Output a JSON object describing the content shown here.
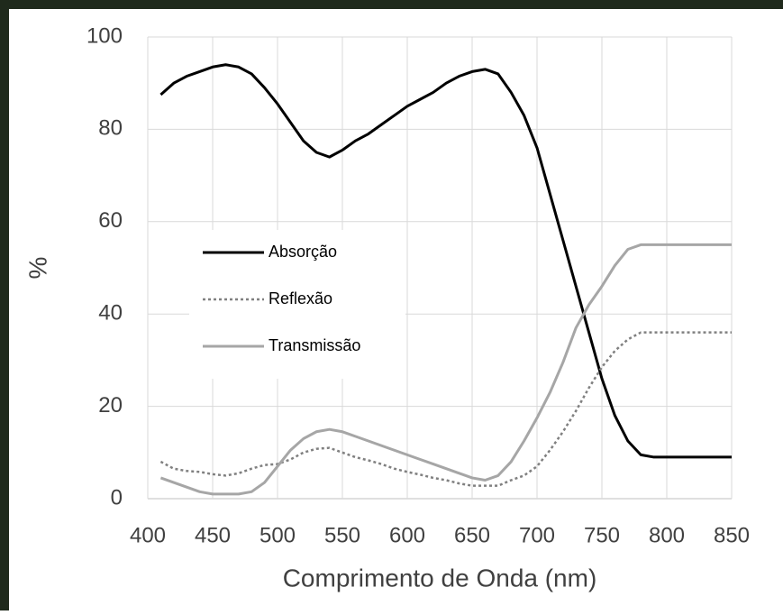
{
  "chart_data": {
    "type": "line",
    "xlabel": "Comprimento de Onda (nm)",
    "ylabel": "%",
    "x": [
      410,
      420,
      430,
      440,
      450,
      460,
      470,
      480,
      490,
      500,
      510,
      520,
      530,
      540,
      550,
      560,
      570,
      580,
      590,
      600,
      610,
      620,
      630,
      640,
      650,
      660,
      670,
      680,
      690,
      700,
      710,
      720,
      730,
      740,
      750,
      760,
      770,
      780,
      790,
      800,
      810,
      820,
      830,
      840,
      850
    ],
    "series": [
      {
        "name": "Absorção",
        "color": "#000000",
        "style": "solid",
        "width": 3,
        "values": [
          87.5,
          90,
          91.5,
          92.5,
          93.5,
          94,
          93.5,
          92,
          89,
          85.5,
          81.5,
          77.5,
          75,
          74,
          75.5,
          77.5,
          79,
          81,
          83,
          85,
          86.5,
          88,
          90,
          91.5,
          92.5,
          93,
          92,
          88,
          83,
          76,
          66,
          56,
          46,
          36,
          26,
          18,
          12.5,
          9.5,
          9,
          9,
          9,
          9,
          9,
          9,
          9
        ]
      },
      {
        "name": "Reflexão",
        "color": "#808080",
        "style": "dotted",
        "width": 2.5,
        "values": [
          8,
          6.5,
          6,
          5.8,
          5.3,
          5,
          5.5,
          6.5,
          7.3,
          7.5,
          8.5,
          10,
          10.8,
          11,
          10,
          9,
          8.3,
          7.5,
          6.5,
          5.8,
          5.2,
          4.5,
          4,
          3.3,
          2.8,
          2.8,
          2.8,
          4,
          5,
          7,
          10.5,
          14.5,
          19,
          24,
          28.5,
          32,
          34.5,
          36,
          36,
          36,
          36,
          36,
          36,
          36,
          36
        ]
      },
      {
        "name": "Transmissão",
        "color": "#a6a6a6",
        "style": "solid",
        "width": 3,
        "values": [
          4.5,
          3.5,
          2.5,
          1.5,
          1,
          1,
          1,
          1.5,
          3.5,
          7,
          10.5,
          13,
          14.5,
          15,
          14.5,
          13.5,
          12.5,
          11.5,
          10.5,
          9.5,
          8.5,
          7.5,
          6.5,
          5.5,
          4.5,
          4,
          5,
          8,
          12.5,
          17.5,
          23,
          29.5,
          37,
          42,
          46,
          50.5,
          54,
          55,
          55,
          55,
          55,
          55,
          55,
          55,
          55
        ]
      }
    ],
    "xlim": [
      400,
      850
    ],
    "xticks": [
      400,
      450,
      500,
      550,
      600,
      650,
      700,
      750,
      800,
      850
    ],
    "ylim": [
      0,
      100
    ],
    "yticks": [
      0,
      20,
      40,
      60,
      80,
      100
    ],
    "grid": true
  }
}
